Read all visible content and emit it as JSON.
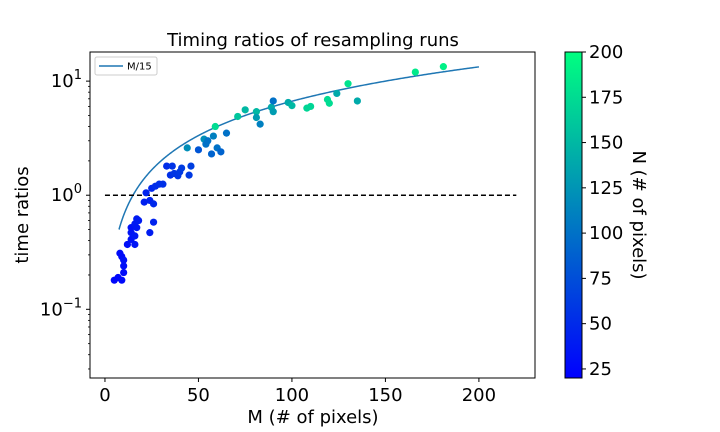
{
  "chart_data": {
    "type": "scatter",
    "title": "Timing ratios of resampling runs",
    "xlabel": "M (# of pixels)",
    "ylabel": "time ratios",
    "xlim": [
      -8,
      230
    ],
    "ylim": [
      0.025,
      18
    ],
    "y_scale": "log",
    "x_ticks": [
      0,
      50,
      100,
      150,
      200
    ],
    "x_tick_labels": [
      "0",
      "50",
      "100",
      "150",
      "200"
    ],
    "y_ticks": [
      0.1,
      1,
      10
    ],
    "y_tick_labels": [
      {
        "base": "10",
        "exp": "−1"
      },
      {
        "base": "10",
        "exp": "0"
      },
      {
        "base": "10",
        "exp": "1"
      }
    ],
    "series": [
      {
        "name": "M/15",
        "kind": "line",
        "formula": "y = x / 15",
        "color": "#1f77b4",
        "x_range": [
          7.5,
          200
        ]
      }
    ],
    "reference_line": {
      "y": 1,
      "x_range": [
        0,
        220
      ],
      "style": "dashed",
      "color": "#000000"
    },
    "colorbar": {
      "label": "N (# of pixels)",
      "range": [
        20,
        200
      ],
      "ticks": [
        "25",
        "50",
        "75",
        "100",
        "125",
        "150",
        "175",
        "200"
      ],
      "tick_values": [
        25,
        50,
        75,
        100,
        125,
        150,
        175,
        200
      ],
      "colormap": "winter",
      "color_low": "#0000ff",
      "color_high": "#00ff80"
    },
    "points": [
      {
        "x": 5,
        "y": 0.18,
        "n": 25
      },
      {
        "x": 7,
        "y": 0.19,
        "n": 25
      },
      {
        "x": 8,
        "y": 0.31,
        "n": 28
      },
      {
        "x": 9,
        "y": 0.29,
        "n": 28
      },
      {
        "x": 9,
        "y": 0.18,
        "n": 26
      },
      {
        "x": 10,
        "y": 0.21,
        "n": 28
      },
      {
        "x": 10,
        "y": 0.24,
        "n": 30
      },
      {
        "x": 10,
        "y": 0.27,
        "n": 32
      },
      {
        "x": 12,
        "y": 0.37,
        "n": 30
      },
      {
        "x": 14,
        "y": 0.41,
        "n": 32
      },
      {
        "x": 14,
        "y": 0.47,
        "n": 34
      },
      {
        "x": 14,
        "y": 0.52,
        "n": 32
      },
      {
        "x": 16,
        "y": 0.37,
        "n": 34
      },
      {
        "x": 16,
        "y": 0.44,
        "n": 36
      },
      {
        "x": 16,
        "y": 0.56,
        "n": 38
      },
      {
        "x": 17,
        "y": 0.52,
        "n": 36
      },
      {
        "x": 17,
        "y": 0.62,
        "n": 38
      },
      {
        "x": 18,
        "y": 0.6,
        "n": 40
      },
      {
        "x": 21,
        "y": 0.87,
        "n": 42
      },
      {
        "x": 22,
        "y": 1.05,
        "n": 44
      },
      {
        "x": 24,
        "y": 0.47,
        "n": 40
      },
      {
        "x": 24,
        "y": 0.9,
        "n": 44
      },
      {
        "x": 25,
        "y": 1.15,
        "n": 46
      },
      {
        "x": 26,
        "y": 0.84,
        "n": 48
      },
      {
        "x": 26,
        "y": 0.58,
        "n": 44
      },
      {
        "x": 27,
        "y": 1.2,
        "n": 50
      },
      {
        "x": 29,
        "y": 1.25,
        "n": 52
      },
      {
        "x": 31,
        "y": 1.25,
        "n": 54
      },
      {
        "x": 33,
        "y": 1.8,
        "n": 52
      },
      {
        "x": 35,
        "y": 1.5,
        "n": 54
      },
      {
        "x": 36,
        "y": 1.8,
        "n": 56
      },
      {
        "x": 37,
        "y": 1.55,
        "n": 58
      },
      {
        "x": 39,
        "y": 1.48,
        "n": 58
      },
      {
        "x": 40,
        "y": 1.6,
        "n": 60
      },
      {
        "x": 41,
        "y": 1.73,
        "n": 62
      },
      {
        "x": 44,
        "y": 2.6,
        "n": 120
      },
      {
        "x": 45,
        "y": 1.5,
        "n": 60
      },
      {
        "x": 46,
        "y": 1.8,
        "n": 64
      },
      {
        "x": 50,
        "y": 2.5,
        "n": 80
      },
      {
        "x": 53,
        "y": 3.1,
        "n": 120
      },
      {
        "x": 54,
        "y": 2.8,
        "n": 100
      },
      {
        "x": 55,
        "y": 3.0,
        "n": 100
      },
      {
        "x": 57,
        "y": 2.3,
        "n": 90
      },
      {
        "x": 58,
        "y": 3.3,
        "n": 110
      },
      {
        "x": 59,
        "y": 4.0,
        "n": 175
      },
      {
        "x": 60,
        "y": 2.6,
        "n": 100
      },
      {
        "x": 62,
        "y": 2.4,
        "n": 90
      },
      {
        "x": 65,
        "y": 3.5,
        "n": 100
      },
      {
        "x": 71,
        "y": 4.9,
        "n": 160
      },
      {
        "x": 75,
        "y": 5.6,
        "n": 150
      },
      {
        "x": 81,
        "y": 5.4,
        "n": 150
      },
      {
        "x": 81,
        "y": 4.8,
        "n": 130
      },
      {
        "x": 83,
        "y": 4.2,
        "n": 110
      },
      {
        "x": 89,
        "y": 5.9,
        "n": 140
      },
      {
        "x": 90,
        "y": 6.7,
        "n": 100
      },
      {
        "x": 90,
        "y": 5.4,
        "n": 130
      },
      {
        "x": 98,
        "y": 6.5,
        "n": 140
      },
      {
        "x": 100,
        "y": 6.1,
        "n": 150
      },
      {
        "x": 108,
        "y": 5.8,
        "n": 170
      },
      {
        "x": 110,
        "y": 6.0,
        "n": 170
      },
      {
        "x": 119,
        "y": 6.9,
        "n": 175
      },
      {
        "x": 120,
        "y": 6.4,
        "n": 175
      },
      {
        "x": 124,
        "y": 7.8,
        "n": 140
      },
      {
        "x": 130,
        "y": 9.5,
        "n": 180
      },
      {
        "x": 135,
        "y": 6.7,
        "n": 140
      },
      {
        "x": 166,
        "y": 12.0,
        "n": 185
      },
      {
        "x": 181,
        "y": 13.4,
        "n": 190
      }
    ]
  }
}
